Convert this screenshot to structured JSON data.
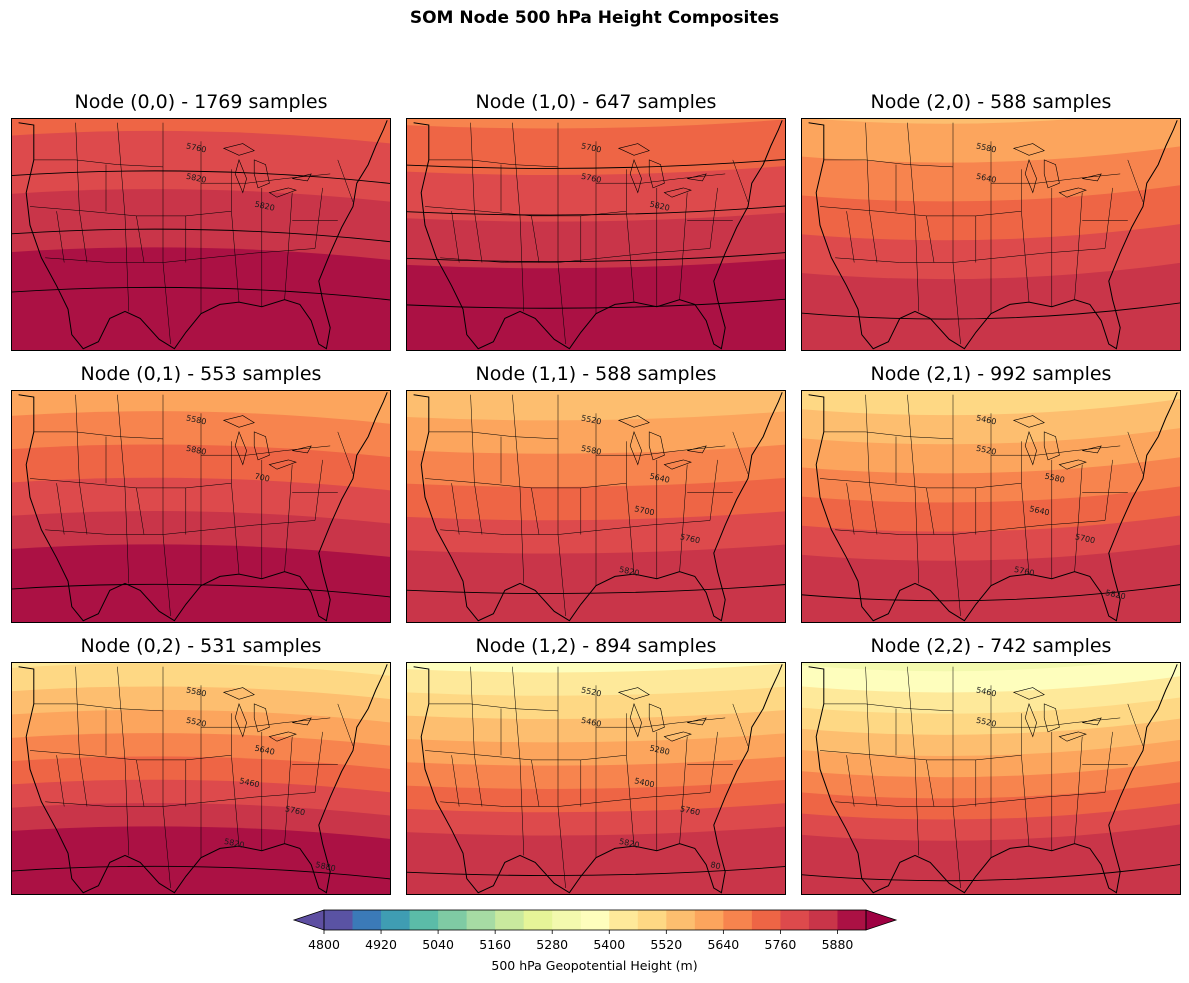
{
  "chart_data": {
    "type": "filled-contour-map-grid",
    "title": "SOM Node 500 hPa Height Composites",
    "grid": "3x3",
    "region": "Contiguous United States",
    "colorbar": {
      "label": "500 hPa Geopotential Height (m)",
      "range": [
        4800,
        5940
      ],
      "interval": 60,
      "ticks": [
        "4800",
        "4920",
        "5040",
        "5160",
        "5280",
        "5400",
        "5520",
        "5640",
        "5760",
        "5880"
      ],
      "extend": "both",
      "colormap": "Spectral_r"
    },
    "panels": [
      {
        "node": "(0,0)",
        "title": "Node (0,0) - 1769 samples",
        "samples": 1769,
        "north_height": 5700,
        "south_height": 5880,
        "contour_labels": [
          {
            "text": "5760"
          },
          {
            "text": "5820"
          },
          {
            "text": "5820"
          }
        ]
      },
      {
        "node": "(1,0)",
        "title": "Node (1,0) - 647 samples",
        "samples": 647,
        "north_height": 5640,
        "south_height": 5880,
        "contour_labels": [
          {
            "text": "5700"
          },
          {
            "text": "5760"
          },
          {
            "text": "5820"
          }
        ]
      },
      {
        "node": "(2,0)",
        "title": "Node (2,0) - 588 samples",
        "samples": 588,
        "north_height": 5520,
        "south_height": 5820,
        "contour_labels": [
          {
            "text": "5580"
          },
          {
            "text": "5640"
          }
        ]
      },
      {
        "node": "(0,1)",
        "title": "Node (0,1) - 553 samples",
        "samples": 553,
        "north_height": 5520,
        "south_height": 5880,
        "contour_labels": [
          {
            "text": "5580"
          },
          {
            "text": "5880"
          },
          {
            "text": "700"
          }
        ]
      },
      {
        "node": "(1,1)",
        "title": "Node (1,1) - 588 samples",
        "samples": 588,
        "north_height": 5460,
        "south_height": 5820,
        "contour_labels": [
          {
            "text": "5520"
          },
          {
            "text": "5580"
          },
          {
            "text": "5640"
          },
          {
            "text": "5700"
          },
          {
            "text": "5760"
          },
          {
            "text": "5820"
          }
        ]
      },
      {
        "node": "(2,1)",
        "title": "Node (2,1) - 992 samples",
        "samples": 992,
        "north_height": 5400,
        "south_height": 5820,
        "contour_labels": [
          {
            "text": "5460"
          },
          {
            "text": "5520"
          },
          {
            "text": "5580"
          },
          {
            "text": "5640"
          },
          {
            "text": "5700"
          },
          {
            "text": "5760"
          },
          {
            "text": "5820"
          }
        ]
      },
      {
        "node": "(0,2)",
        "title": "Node (0,2) - 531 samples",
        "samples": 531,
        "north_height": 5340,
        "south_height": 5880,
        "contour_labels": [
          {
            "text": "5580"
          },
          {
            "text": "5520"
          },
          {
            "text": "5640"
          },
          {
            "text": "5460"
          },
          {
            "text": "5760"
          },
          {
            "text": "5820"
          },
          {
            "text": "5880"
          }
        ]
      },
      {
        "node": "(1,2)",
        "title": "Node (1,2) - 894 samples",
        "samples": 894,
        "north_height": 5280,
        "south_height": 5820,
        "contour_labels": [
          {
            "text": "5520"
          },
          {
            "text": "5460"
          },
          {
            "text": "5280"
          },
          {
            "text": "5400"
          },
          {
            "text": "5760"
          },
          {
            "text": "5820"
          },
          {
            "text": "80"
          }
        ]
      },
      {
        "node": "(2,2)",
        "title": "Node (2,2) - 742 samples",
        "samples": 742,
        "north_height": 5220,
        "south_height": 5820,
        "contour_labels": [
          {
            "text": "5460"
          },
          {
            "text": "5520"
          }
        ]
      }
    ]
  }
}
